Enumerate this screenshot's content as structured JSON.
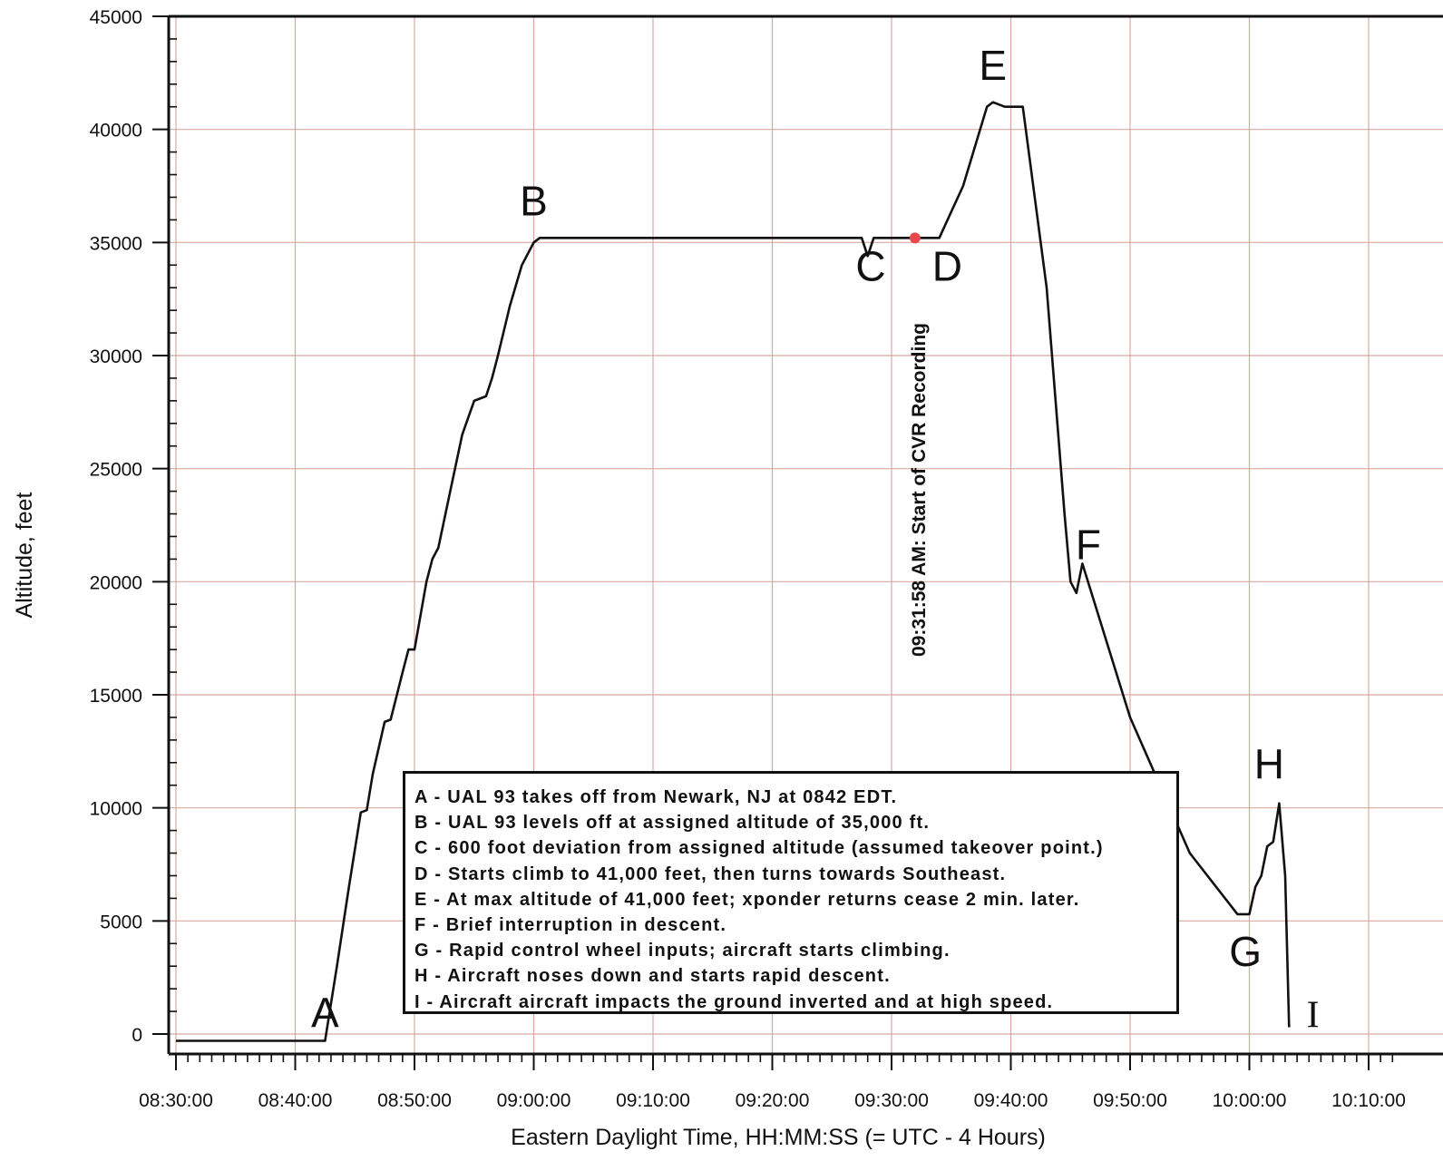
{
  "chart_data": {
    "type": "line",
    "title": "",
    "xlabel": "Eastern Daylight Time, HH:MM:SS (= UTC - 4 Hours)",
    "ylabel": "Altitude, feet",
    "xlim": [
      "08:30:00",
      "10:12:00"
    ],
    "ylim": [
      0,
      45000
    ],
    "grid": true,
    "x_tick_labels": [
      "08:30:00",
      "08:40:00",
      "08:50:00",
      "09:00:00",
      "09:10:00",
      "09:20:00",
      "09:30:00",
      "09:40:00",
      "09:50:00",
      "10:00:00",
      "10:10:00"
    ],
    "y_tick_labels": [
      "0",
      "5000",
      "10000",
      "15000",
      "20000",
      "25000",
      "30000",
      "35000",
      "40000",
      "45000"
    ],
    "series": [
      {
        "x": [
          "08:30:00",
          "08:35:00",
          "08:40:00",
          "08:42:30",
          "08:43:30",
          "08:44:30",
          "08:45:30",
          "08:46:00",
          "08:46:30",
          "08:47:30",
          "08:48:00",
          "08:49:00",
          "08:49:30",
          "08:50:00",
          "08:51:00",
          "08:51:30",
          "08:52:00",
          "08:53:00",
          "08:54:00",
          "08:55:00",
          "08:56:00",
          "08:56:30",
          "08:57:00",
          "08:58:00",
          "08:59:00",
          "09:00:00",
          "09:00:30",
          "09:01:00",
          "09:10:00",
          "09:20:00",
          "09:27:30",
          "09:28:00",
          "09:28:30",
          "09:29:00",
          "09:34:00",
          "09:36:00",
          "09:38:00",
          "09:38:30",
          "09:39:30",
          "09:41:00",
          "09:43:00",
          "09:44:30",
          "09:45:00",
          "09:45:30",
          "09:46:00",
          "09:50:00",
          "09:55:00",
          "09:59:00",
          "10:00:00",
          "10:00:30",
          "10:01:00",
          "10:01:30",
          "10:02:00",
          "10:02:30",
          "10:03:00",
          "10:03:20"
        ],
        "y": [
          -300,
          -300,
          -300,
          -300,
          3000,
          6500,
          9800,
          9900,
          11500,
          13800,
          13900,
          16000,
          17000,
          17000,
          20000,
          21000,
          21500,
          24000,
          26500,
          28000,
          28200,
          29000,
          30000,
          32200,
          34000,
          35000,
          35200,
          35200,
          35200,
          35200,
          35200,
          34400,
          35200,
          35200,
          35200,
          37500,
          41000,
          41200,
          41000,
          41000,
          33000,
          23000,
          20000,
          19500,
          20800,
          14000,
          8000,
          5300,
          5300,
          6500,
          7000,
          8300,
          8500,
          10200,
          7000,
          300
        ]
      }
    ],
    "annotations": [
      {
        "label": "A",
        "x": "08:42:30",
        "y": 300
      },
      {
        "label": "B",
        "x": "09:00:00",
        "y": 36200
      },
      {
        "label": "C",
        "x": "09:28:15",
        "y": 33300
      },
      {
        "label": "D",
        "x": "09:34:40",
        "y": 33300
      },
      {
        "label": "E",
        "x": "09:38:30",
        "y": 42200
      },
      {
        "label": "F",
        "x": "09:46:30",
        "y": 21000
      },
      {
        "label": "G",
        "x": "09:59:40",
        "y": 3000
      },
      {
        "label": "H",
        "x": "10:01:40",
        "y": 11300
      },
      {
        "label": "I",
        "x": "10:05:20",
        "y": 300
      }
    ],
    "cvr_marker": {
      "x": "09:31:58",
      "y": 35200,
      "label": "09:31:58 AM: Start of CVR Recording",
      "color": "#e8474b"
    },
    "legend": [
      "A - UAL 93 takes off from Newark, NJ at 0842 EDT.",
      "B - UAL 93 levels off at assigned altitude of 35,000 ft.",
      "C - 600 foot deviation from assigned altitude (assumed takeover point.)",
      "D - Starts climb to 41,000 feet, then turns towards Southeast.",
      "E - At max altitude of 41,000 feet; xponder returns cease 2 min. later.",
      "F - Brief interruption in descent.",
      "G - Rapid control wheel inputs; aircraft starts climbing.",
      "H - Aircraft noses down and starts rapid descent.",
      "I - Aircraft aircraft impacts the ground inverted and at high speed."
    ],
    "legend_placement": "bottom-center",
    "colors": {
      "line": "#111111",
      "grid": "#d8a9a0",
      "axis": "#111111"
    }
  }
}
